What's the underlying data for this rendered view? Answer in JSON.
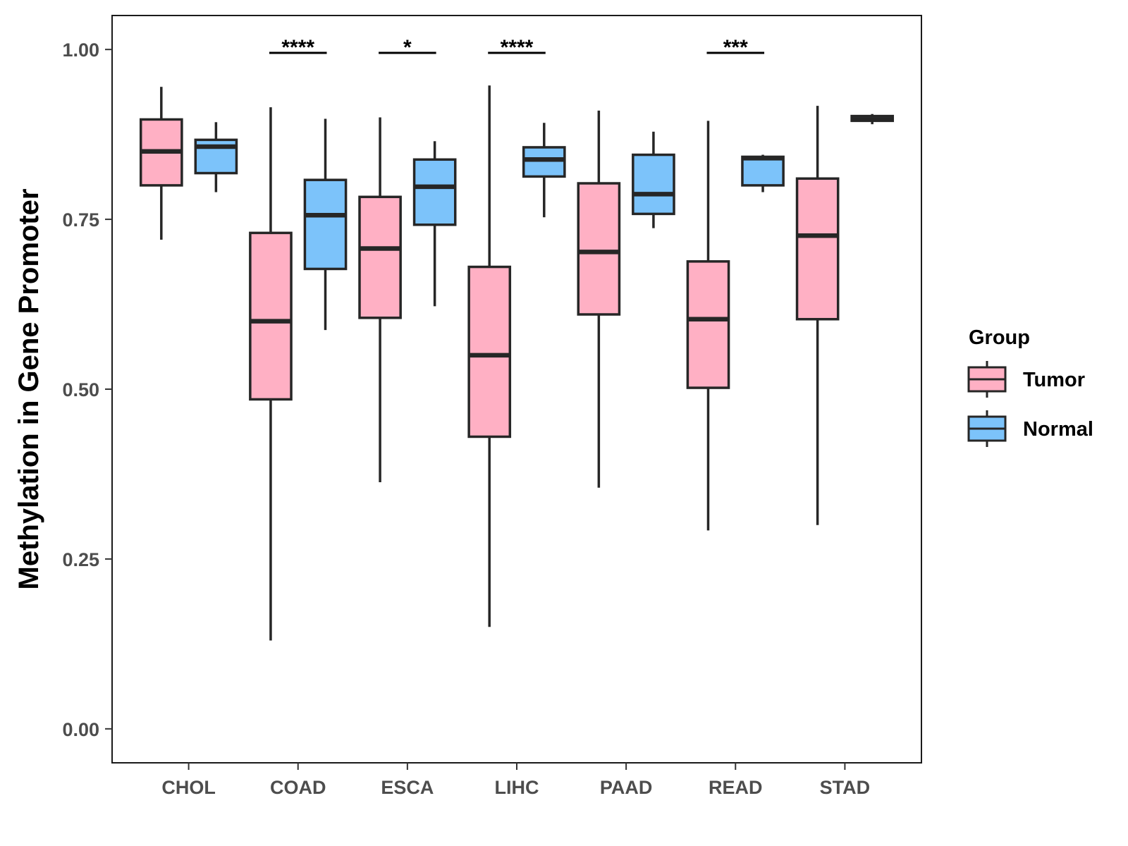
{
  "chart_data": {
    "type": "box",
    "title": "",
    "xlabel": "",
    "ylabel": "Methylation in Gene Promoter",
    "ylim": [
      -0.05,
      1.05
    ],
    "yticks": [
      "0.00",
      "0.25",
      "0.50",
      "0.75",
      "1.00"
    ],
    "ytick_values": [
      0,
      0.25,
      0.5,
      0.75,
      1.0
    ],
    "categories": [
      "CHOL",
      "COAD",
      "ESCA",
      "LIHC",
      "PAAD",
      "READ",
      "STAD"
    ],
    "legend": {
      "title": "Group",
      "position": "right",
      "entries": [
        {
          "label": "Tumor",
          "color": "#FFB0C4"
        },
        {
          "label": "Normal",
          "color": "#7CC3FA"
        }
      ]
    },
    "series": [
      {
        "name": "Tumor",
        "color": "#FFB0C4",
        "boxes": [
          {
            "category": "CHOL",
            "min": 0.72,
            "q1": 0.8,
            "median": 0.85,
            "q3": 0.897,
            "max": 0.945
          },
          {
            "category": "COAD",
            "min": 0.13,
            "q1": 0.485,
            "median": 0.6,
            "q3": 0.73,
            "max": 0.915
          },
          {
            "category": "ESCA",
            "min": 0.363,
            "q1": 0.605,
            "median": 0.707,
            "q3": 0.783,
            "max": 0.9
          },
          {
            "category": "LIHC",
            "min": 0.15,
            "q1": 0.43,
            "median": 0.55,
            "q3": 0.68,
            "max": 0.947
          },
          {
            "category": "PAAD",
            "min": 0.355,
            "q1": 0.61,
            "median": 0.702,
            "q3": 0.803,
            "max": 0.91
          },
          {
            "category": "READ",
            "min": 0.292,
            "q1": 0.502,
            "median": 0.603,
            "q3": 0.688,
            "max": 0.895
          },
          {
            "category": "STAD",
            "min": 0.3,
            "q1": 0.603,
            "median": 0.726,
            "q3": 0.81,
            "max": 0.917
          }
        ]
      },
      {
        "name": "Normal",
        "color": "#7CC3FA",
        "boxes": [
          {
            "category": "CHOL",
            "min": 0.79,
            "q1": 0.818,
            "median": 0.857,
            "q3": 0.867,
            "max": 0.893
          },
          {
            "category": "COAD",
            "min": 0.587,
            "q1": 0.677,
            "median": 0.756,
            "q3": 0.808,
            "max": 0.898
          },
          {
            "category": "ESCA",
            "min": 0.622,
            "q1": 0.742,
            "median": 0.798,
            "q3": 0.838,
            "max": 0.865
          },
          {
            "category": "LIHC",
            "min": 0.753,
            "q1": 0.813,
            "median": 0.838,
            "q3": 0.856,
            "max": 0.892
          },
          {
            "category": "PAAD",
            "min": 0.737,
            "q1": 0.758,
            "median": 0.787,
            "q3": 0.845,
            "max": 0.879
          },
          {
            "category": "READ",
            "min": 0.79,
            "q1": 0.8,
            "median": 0.84,
            "q3": 0.842,
            "max": 0.845
          },
          {
            "category": "STAD",
            "min": 0.89,
            "q1": 0.895,
            "median": 0.897,
            "q3": 0.902,
            "max": 0.905
          }
        ]
      }
    ],
    "annotations": [
      {
        "category": "COAD",
        "label": "****",
        "y": 0.995
      },
      {
        "category": "ESCA",
        "label": "*",
        "y": 0.995
      },
      {
        "category": "LIHC",
        "label": "****",
        "y": 0.995
      },
      {
        "category": "READ",
        "label": "***",
        "y": 0.995
      }
    ],
    "grid": false
  }
}
